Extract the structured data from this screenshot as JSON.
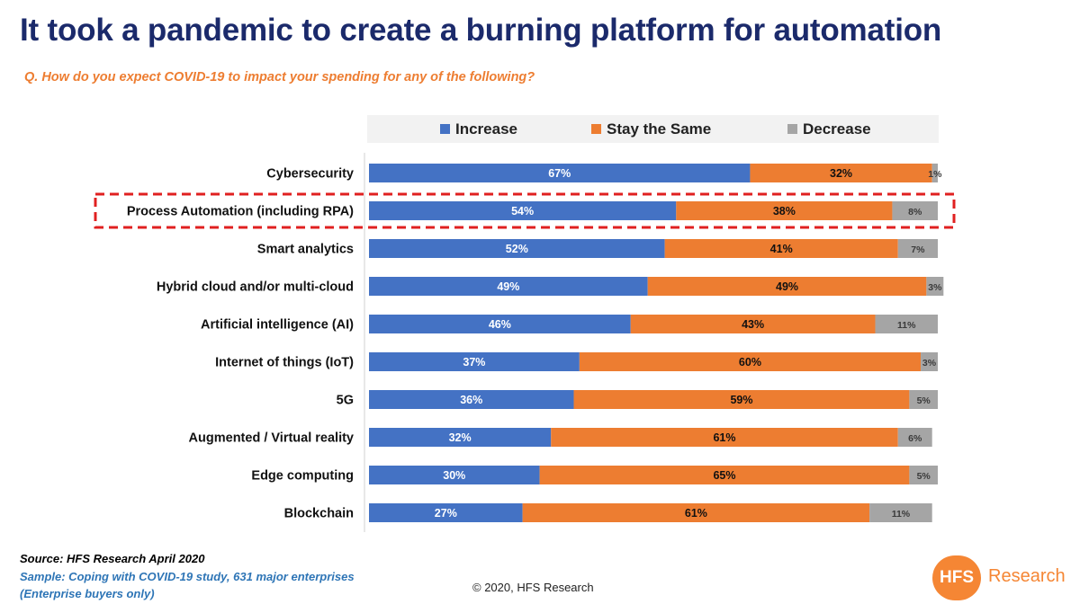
{
  "header": {
    "title": "It took a pandemic to create a burning platform for automation",
    "subtitle": "Q. How do you expect COVID-19 to impact your spending for any of the following?"
  },
  "colors": {
    "increase": "#4472c4",
    "stay": "#ed7d31",
    "decrease": "#a5a5a5",
    "title": "#1b2a6b",
    "highlight": "#e02020",
    "brand": "#f58634"
  },
  "footer": {
    "source": "Source: HFS Research April 2020",
    "sample": "Sample: Coping with COVID-19 study, 631 major enterprises",
    "note": "(Enterprise buyers only)",
    "copyright": "© 2020, HFS Research",
    "logo_mark": "HFS",
    "logo_text": "Research"
  },
  "chart_data": {
    "type": "bar",
    "orientation": "horizontal",
    "stacked": true,
    "categories": [
      "Cybersecurity",
      "Process Automation (including RPA)",
      "Smart analytics",
      "Hybrid cloud and/or multi-cloud",
      "Artificial intelligence (AI)",
      "Internet of things (IoT)",
      "5G",
      "Augmented / Virtual reality",
      "Edge computing",
      "Blockchain"
    ],
    "series": [
      {
        "name": "Increase",
        "values": [
          67,
          54,
          52,
          49,
          46,
          37,
          36,
          32,
          30,
          27
        ],
        "labels": [
          "67%",
          "54%",
          "52%",
          "49%",
          "46%",
          "37%",
          "36%",
          "32%",
          "30%",
          "27%"
        ]
      },
      {
        "name": "Stay the Same",
        "values": [
          32,
          38,
          41,
          49,
          43,
          60,
          59,
          61,
          65,
          61
        ],
        "labels": [
          "32%",
          "38%",
          "41%",
          "49%",
          "43%",
          "60%",
          "59%",
          "61%",
          "65%",
          "61%"
        ]
      },
      {
        "name": "Decrease",
        "values": [
          1,
          8,
          7,
          3,
          11,
          3,
          5,
          6,
          5,
          11
        ],
        "labels": [
          "1%",
          "8%",
          "7%",
          "3%",
          "11%",
          "3%",
          "5%",
          "6%",
          "5%",
          "11%"
        ]
      }
    ],
    "highlighted_category": "Process Automation (including RPA)",
    "legend_position": "top",
    "xlim": [
      0,
      100
    ],
    "grid": false
  }
}
